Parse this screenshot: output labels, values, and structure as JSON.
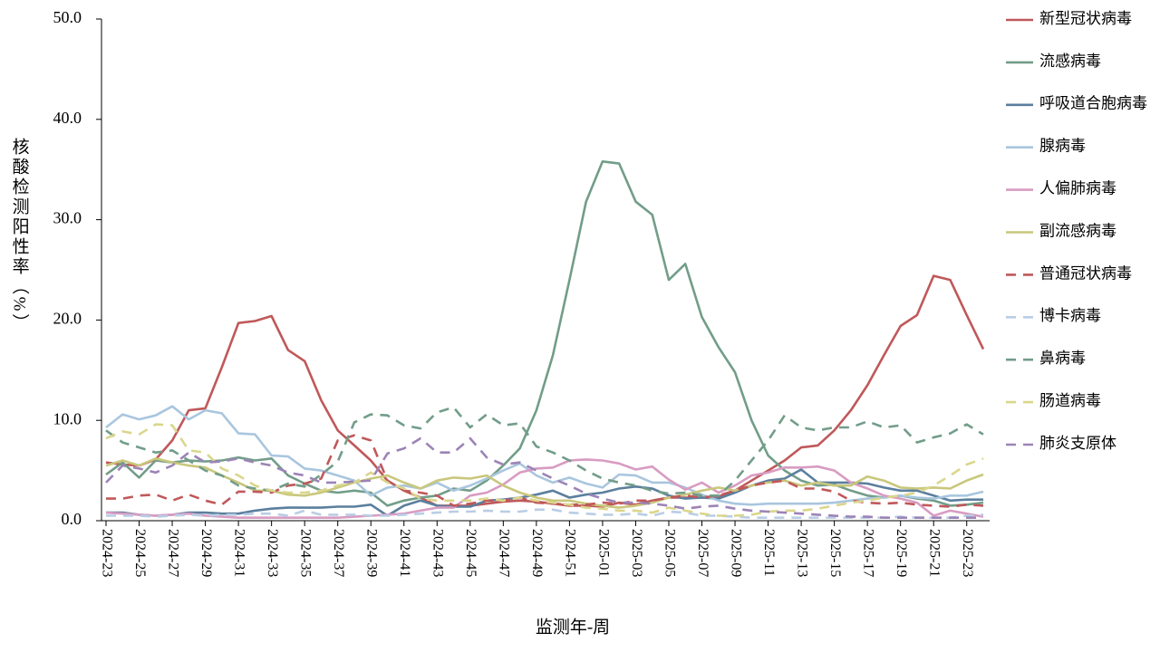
{
  "chart_data": {
    "type": "line",
    "y_label": "核酸检测阳性率（%）",
    "x_label": "监测年-周",
    "categories": [
      "2024-23",
      null,
      "2024-25",
      null,
      "2024-27",
      null,
      "2024-29",
      null,
      "2024-31",
      null,
      "2024-33",
      null,
      "2024-35",
      null,
      "2024-37",
      null,
      "2024-39",
      null,
      "2024-41",
      null,
      "2024-43",
      null,
      "2024-45",
      null,
      "2024-47",
      null,
      "2024-49",
      null,
      "2024-51",
      null,
      "2025-01",
      null,
      "2025-03",
      null,
      "2025-05",
      null,
      "2025-07",
      null,
      "2025-09",
      null,
      "2025-11",
      null,
      "2025-13",
      null,
      "2025-15",
      null,
      "2025-17",
      null,
      "2025-19",
      null,
      "2025-21",
      null,
      "2025-23",
      null
    ],
    "ylim": [
      0,
      50
    ],
    "yticks": [
      {
        "value": 0,
        "label": "0.0"
      },
      {
        "value": 10,
        "label": "10.0"
      },
      {
        "value": 20,
        "label": "20.0"
      },
      {
        "value": 30,
        "label": "30.0"
      },
      {
        "value": 40,
        "label": "40.0"
      },
      {
        "value": 50,
        "label": "50.0"
      }
    ],
    "legend": "right",
    "series": [
      {
        "name": "新型冠状病毒",
        "color": "#c0585a",
        "dashed": false,
        "values": [
          5.8,
          5.6,
          5.5,
          6.1,
          8.0,
          11.0,
          11.2,
          15.3,
          19.7,
          19.9,
          20.4,
          17.0,
          15.9,
          12.0,
          9.0,
          7.5,
          6.0,
          4.0,
          3.0,
          2.3,
          1.5,
          1.5,
          1.5,
          1.7,
          1.9,
          2.0,
          1.9,
          1.7,
          1.5,
          1.5,
          1.4,
          1.8,
          1.6,
          2.0,
          2.3,
          2.3,
          2.3,
          2.4,
          3.0,
          4.0,
          5.0,
          6.0,
          7.3,
          7.5,
          9.0,
          11.0,
          13.5,
          16.5,
          19.4,
          20.5,
          24.4,
          24.0,
          20.5,
          17.1
        ]
      },
      {
        "name": "流感病毒",
        "color": "#729d89",
        "dashed": false,
        "values": [
          4.6,
          5.8,
          4.3,
          6.0,
          5.8,
          6.0,
          5.9,
          6.0,
          6.3,
          6.0,
          6.2,
          4.5,
          3.7,
          3.0,
          2.8,
          3.0,
          2.8,
          1.5,
          2.0,
          2.3,
          2.5,
          3.2,
          3.0,
          4.0,
          5.5,
          7.2,
          11.0,
          16.5,
          24.0,
          31.8,
          35.8,
          35.6,
          31.8,
          30.5,
          24.0,
          25.6,
          20.3,
          17.3,
          14.8,
          10.0,
          6.5,
          5.0,
          4.0,
          3.5,
          3.6,
          3.0,
          2.5,
          2.3,
          2.5,
          2.2,
          2.0,
          1.5,
          1.6,
          1.8
        ]
      },
      {
        "name": "呼吸道合胞病毒",
        "color": "#5b7f9e",
        "dashed": false,
        "values": [
          0.8,
          0.8,
          0.6,
          0.5,
          0.6,
          0.8,
          0.8,
          0.7,
          0.7,
          1.0,
          1.2,
          1.3,
          1.3,
          1.3,
          1.4,
          1.4,
          1.6,
          0.5,
          1.5,
          2.0,
          1.5,
          1.4,
          1.4,
          2.0,
          2.1,
          2.3,
          2.6,
          3.0,
          2.3,
          2.6,
          2.8,
          3.2,
          3.4,
          3.2,
          2.5,
          2.2,
          2.3,
          2.2,
          2.8,
          3.5,
          4.0,
          4.2,
          5.1,
          3.8,
          3.8,
          3.8,
          3.7,
          3.3,
          3.0,
          3.0,
          2.5,
          2.0,
          2.1,
          2.1
        ]
      },
      {
        "name": "腺病毒",
        "color": "#a9c6de",
        "dashed": false,
        "values": [
          9.3,
          10.6,
          10.1,
          10.5,
          11.4,
          10.1,
          11.0,
          10.7,
          8.7,
          8.6,
          6.5,
          6.4,
          5.2,
          5.0,
          4.5,
          4.0,
          2.5,
          3.3,
          3.5,
          3.2,
          3.8,
          3.0,
          3.5,
          4.2,
          5.0,
          5.7,
          4.5,
          3.8,
          4.3,
          3.7,
          3.3,
          4.6,
          4.5,
          3.8,
          3.8,
          3.3,
          2.6,
          2.0,
          1.7,
          1.6,
          1.7,
          1.7,
          1.7,
          1.7,
          1.8,
          2.0,
          2.2,
          2.3,
          2.5,
          2.3,
          2.2,
          2.5,
          2.5,
          2.9
        ]
      },
      {
        "name": "人偏肺病毒",
        "color": "#d89cc2",
        "dashed": false,
        "values": [
          0.8,
          0.7,
          0.6,
          0.5,
          0.6,
          0.7,
          0.5,
          0.4,
          0.3,
          0.3,
          0.3,
          0.3,
          0.3,
          0.3,
          0.3,
          0.4,
          0.5,
          0.6,
          0.7,
          1.0,
          1.3,
          1.3,
          2.5,
          2.8,
          3.6,
          4.8,
          5.2,
          5.3,
          6.0,
          6.1,
          6.0,
          5.7,
          5.1,
          5.4,
          4.1,
          3.1,
          3.8,
          2.8,
          3.5,
          4.5,
          4.8,
          5.3,
          5.3,
          5.4,
          5.0,
          3.8,
          3.2,
          2.5,
          2.2,
          1.8,
          0.5,
          1.0,
          0.7,
          0.4
        ]
      },
      {
        "name": "副流感病毒",
        "color": "#c9c77c",
        "dashed": false,
        "values": [
          5.5,
          6.0,
          5.5,
          6.2,
          5.8,
          5.5,
          5.3,
          4.5,
          3.8,
          3.0,
          3.0,
          2.6,
          2.5,
          2.8,
          3.3,
          3.8,
          4.2,
          4.5,
          3.8,
          3.2,
          4.0,
          4.3,
          4.2,
          4.5,
          3.5,
          2.8,
          2.3,
          2.0,
          2.0,
          1.7,
          1.5,
          1.3,
          1.5,
          1.8,
          2.3,
          2.6,
          3.0,
          3.3,
          3.0,
          3.5,
          3.8,
          4.0,
          3.5,
          3.8,
          3.5,
          3.5,
          4.4,
          4.0,
          3.3,
          3.2,
          3.3,
          3.2,
          4.0,
          4.6
        ]
      },
      {
        "name": "普通冠状病毒",
        "color": "#c0585a",
        "dashed": true,
        "values": [
          2.2,
          2.2,
          2.5,
          2.6,
          2.0,
          2.6,
          2.0,
          1.6,
          2.9,
          2.9,
          2.8,
          3.5,
          3.7,
          4.2,
          8.0,
          8.5,
          8.0,
          4.0,
          3.0,
          2.8,
          2.5,
          1.5,
          1.7,
          2.0,
          2.0,
          2.3,
          1.8,
          1.7,
          1.6,
          1.6,
          1.8,
          1.7,
          2.0,
          2.0,
          2.3,
          2.5,
          2.3,
          2.5,
          3.0,
          3.5,
          3.8,
          4.0,
          3.2,
          3.2,
          2.9,
          2.0,
          1.8,
          1.7,
          1.8,
          1.6,
          1.5,
          1.4,
          1.6,
          1.5
        ]
      },
      {
        "name": "博卡病毒",
        "color": "#b9cde5",
        "dashed": true,
        "values": [
          0.5,
          0.5,
          0.5,
          0.4,
          0.5,
          0.6,
          0.5,
          0.6,
          0.6,
          0.7,
          0.7,
          0.5,
          1.0,
          0.6,
          0.6,
          0.6,
          0.5,
          0.5,
          0.6,
          0.7,
          0.8,
          0.9,
          0.9,
          1.0,
          0.9,
          0.9,
          1.1,
          1.1,
          0.8,
          0.7,
          0.6,
          0.6,
          0.7,
          0.5,
          0.9,
          0.8,
          0.5,
          0.5,
          0.4,
          0.3,
          0.3,
          0.3,
          0.3,
          0.3,
          0.3,
          0.3,
          0.3,
          0.3,
          0.4,
          0.3,
          0.3,
          0.3,
          0.5,
          0.6
        ]
      },
      {
        "name": "鼻病毒",
        "color": "#729d89",
        "dashed": true,
        "values": [
          9.0,
          7.8,
          7.3,
          6.8,
          7.0,
          6.0,
          5.0,
          4.5,
          3.5,
          3.2,
          3.0,
          3.7,
          3.4,
          4.6,
          5.9,
          9.8,
          10.6,
          10.5,
          9.5,
          9.2,
          10.8,
          11.3,
          9.3,
          10.6,
          9.5,
          9.7,
          7.4,
          6.8,
          6.0,
          5.0,
          4.2,
          3.8,
          3.5,
          3.0,
          2.7,
          2.8,
          2.5,
          2.5,
          4.0,
          6.0,
          8.0,
          10.5,
          9.3,
          9.0,
          9.3,
          9.3,
          9.9,
          9.3,
          9.5,
          7.8,
          8.3,
          8.7,
          9.6,
          8.6
        ]
      },
      {
        "name": "肠道病毒",
        "color": "#dad68c",
        "dashed": true,
        "values": [
          8.2,
          8.9,
          8.6,
          9.6,
          9.5,
          7.0,
          6.8,
          5.2,
          4.5,
          3.5,
          3.0,
          2.8,
          2.8,
          3.0,
          3.5,
          3.8,
          4.8,
          3.8,
          3.2,
          2.2,
          2.0,
          2.0,
          2.0,
          2.2,
          2.0,
          2.3,
          2.0,
          1.8,
          1.6,
          1.3,
          1.2,
          1.0,
          1.0,
          0.8,
          1.3,
          1.0,
          0.7,
          0.5,
          0.5,
          0.6,
          0.9,
          1.0,
          1.0,
          1.2,
          1.5,
          1.8,
          2.0,
          2.3,
          2.5,
          2.8,
          3.5,
          4.5,
          5.6,
          6.2
        ]
      },
      {
        "name": "肺炎支原体",
        "color": "#9c84b6",
        "dashed": true,
        "values": [
          3.8,
          5.5,
          5.2,
          4.8,
          5.5,
          6.8,
          5.8,
          5.9,
          6.2,
          5.8,
          5.5,
          4.8,
          4.5,
          3.8,
          3.8,
          3.9,
          4.0,
          6.7,
          7.2,
          8.2,
          6.8,
          6.8,
          8.2,
          6.3,
          5.6,
          5.8,
          5.0,
          4.2,
          3.5,
          2.7,
          2.2,
          1.8,
          1.8,
          1.7,
          1.5,
          1.2,
          1.4,
          1.5,
          1.2,
          1.0,
          0.9,
          0.8,
          0.7,
          0.6,
          0.5,
          0.4,
          0.4,
          0.3,
          0.3,
          0.3,
          0.3,
          0.3,
          0.3,
          0.3
        ]
      }
    ]
  }
}
